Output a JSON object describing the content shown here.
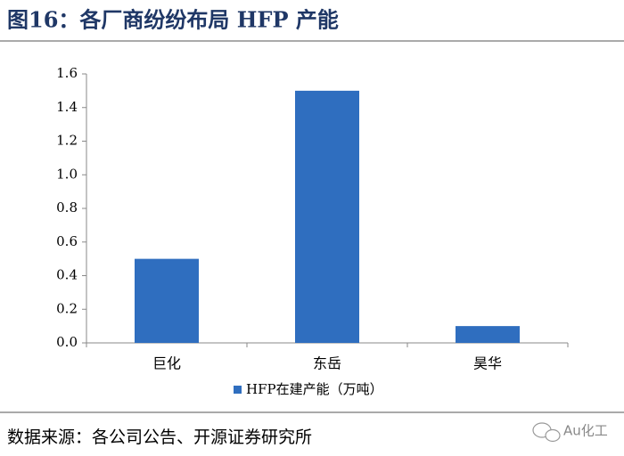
{
  "title": "图16：各厂商纷纷布局 HFP 产能",
  "chart_data": {
    "type": "bar",
    "categories": [
      "巨化",
      "东岳",
      "昊华"
    ],
    "series": [
      {
        "name": "HFP在建产能（万吨）",
        "color": "#2f6ebf",
        "values": [
          0.5,
          1.5,
          0.1
        ]
      }
    ],
    "ylim": [
      0,
      1.6
    ],
    "yticks": [
      {
        "value": 0,
        "label": "0.0"
      },
      0.2,
      0.4,
      0.6,
      0.8,
      {
        "value": 1,
        "label": "1.0"
      },
      1.2,
      1.4,
      1.6
    ],
    "legend": "bottom"
  },
  "source": "数据来源：各公司公告、开源证券研究所",
  "watermark": "Au化工"
}
